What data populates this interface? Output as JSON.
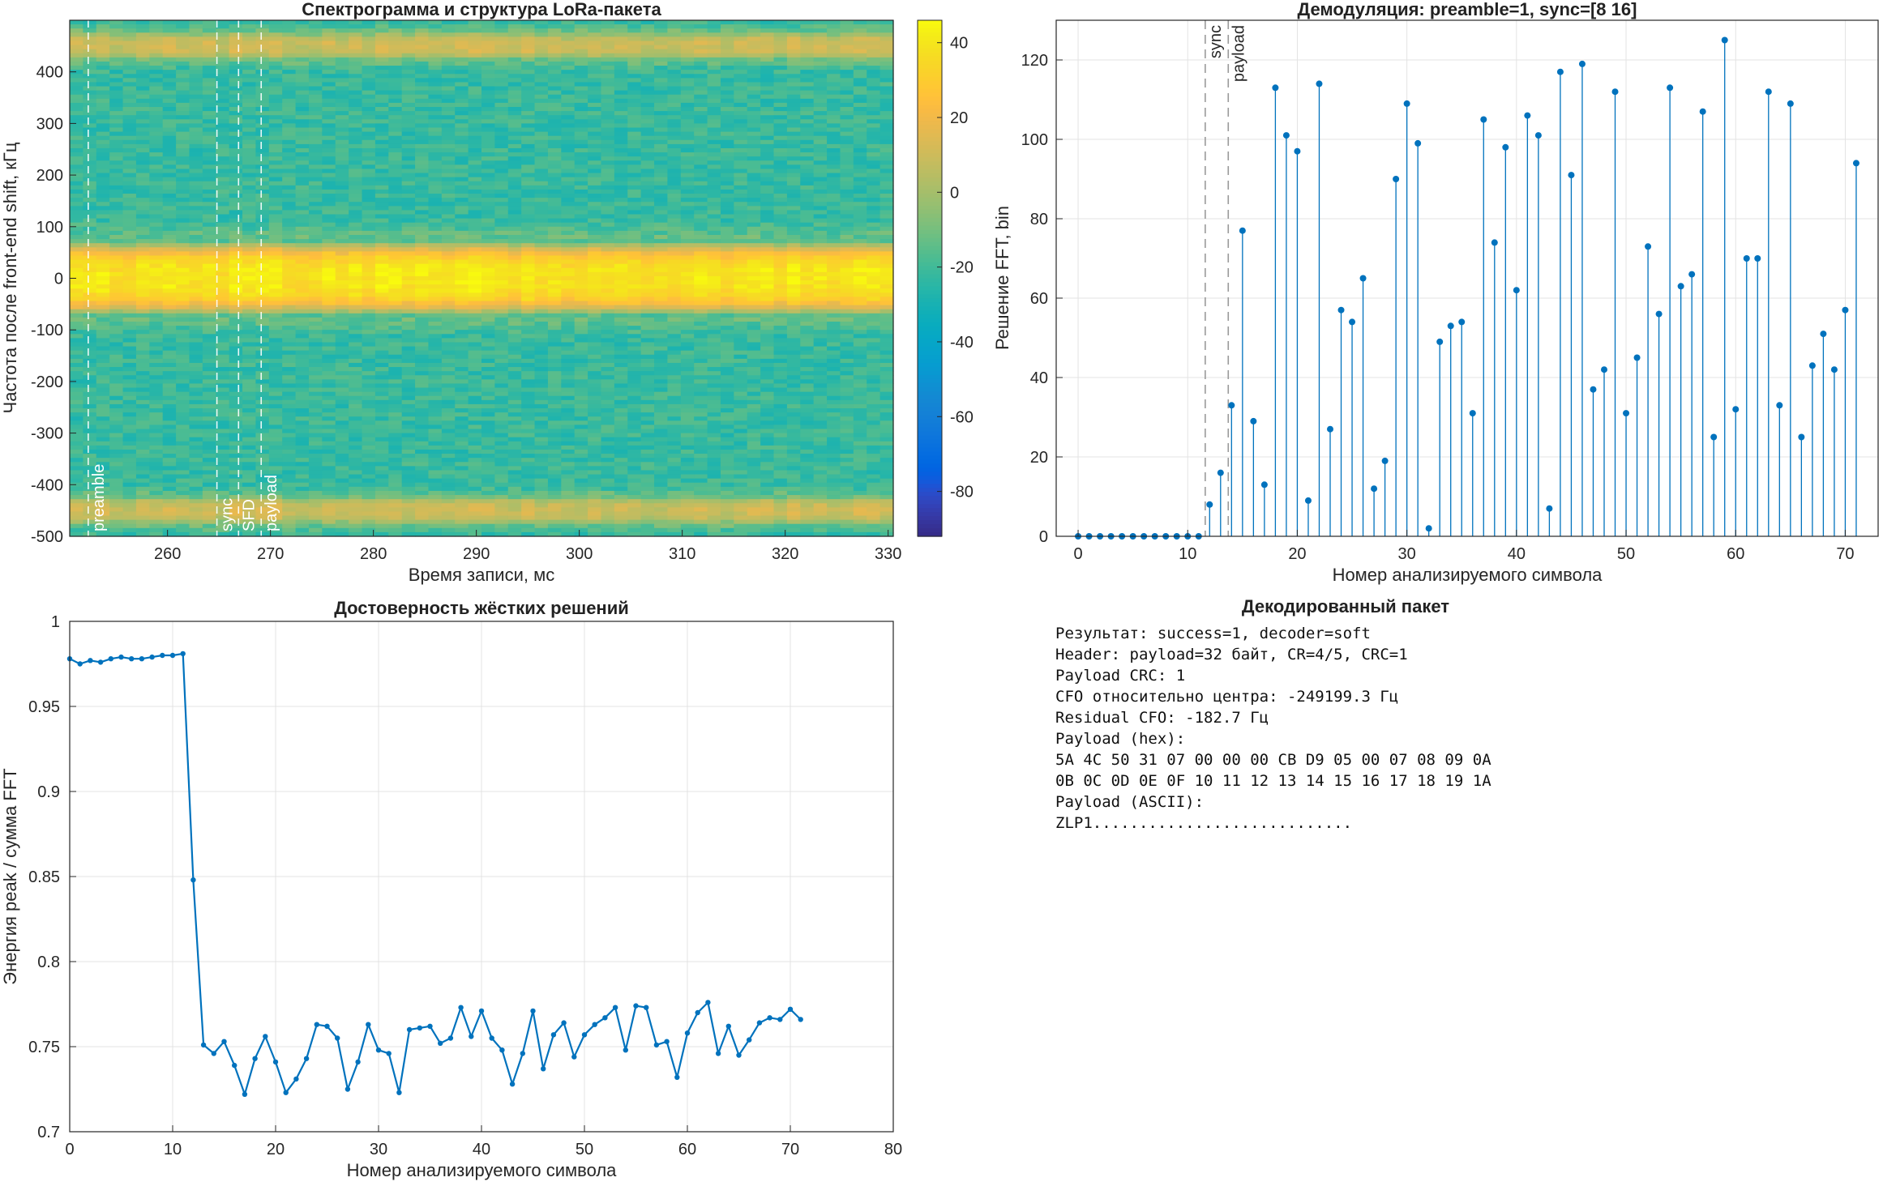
{
  "colors": {
    "accent": "#0072BD",
    "grid": "#e3e3e3",
    "axis": "#262626",
    "guide": "#9a9a9a"
  },
  "chart_data": [
    {
      "type": "heatmap",
      "title": "Спектрограмма и структура LoRa-пакета",
      "xlabel": "Время записи, мс",
      "ylabel": "Частота после front-end shift, кГц",
      "xlim": [
        250.5,
        330.5
      ],
      "ylim": [
        -500,
        500
      ],
      "xticks": [
        260,
        270,
        280,
        290,
        300,
        310,
        320,
        330
      ],
      "yticks": [
        -500,
        -400,
        -300,
        -200,
        -100,
        0,
        100,
        200,
        300,
        400
      ],
      "colorbar": {
        "clim": [
          -92,
          46
        ],
        "ticks": [
          40,
          20,
          0,
          -20,
          -40,
          -60,
          -80
        ],
        "colormap": "parula"
      },
      "bands": [
        {
          "center_khz": 0,
          "halfwidth_khz": 75,
          "level_db": 40
        },
        {
          "center_khz": 450,
          "halfwidth_khz": 30,
          "level_db": 10
        },
        {
          "center_khz": -450,
          "halfwidth_khz": 30,
          "level_db": 10
        }
      ],
      "background_level_db": -22,
      "markers": [
        {
          "label": "preamble",
          "x": 252.3
        },
        {
          "label": "sync",
          "x": 264.8
        },
        {
          "label": "SFD",
          "x": 266.9
        },
        {
          "label": "payload",
          "x": 269.1
        }
      ]
    },
    {
      "type": "stem",
      "title": "Демодуляция: preamble=1, sync=[8 16]",
      "xlabel": "Номер анализируемого символа",
      "ylabel": "Решение FFT, bin",
      "xlim": [
        -2,
        73
      ],
      "ylim": [
        0,
        130
      ],
      "xticks": [
        0,
        10,
        20,
        30,
        40,
        50,
        60,
        70
      ],
      "yticks": [
        0,
        20,
        40,
        60,
        80,
        100,
        120
      ],
      "markers": [
        {
          "label": "sync",
          "x": 11.6
        },
        {
          "label": "payload",
          "x": 13.7
        }
      ],
      "x": [
        0,
        1,
        2,
        3,
        4,
        5,
        6,
        7,
        8,
        9,
        10,
        11,
        12,
        13,
        14,
        15,
        16,
        17,
        18,
        19,
        20,
        21,
        22,
        23,
        24,
        25,
        26,
        27,
        28,
        29,
        30,
        31,
        32,
        33,
        34,
        35,
        36,
        37,
        38,
        39,
        40,
        41,
        42,
        43,
        44,
        45,
        46,
        47,
        48,
        49,
        50,
        51,
        52,
        53,
        54,
        55,
        56,
        57,
        58,
        59,
        60,
        61,
        62,
        63,
        64,
        65,
        66,
        67,
        68,
        69,
        70,
        71
      ],
      "values": [
        0,
        0,
        0,
        0,
        0,
        0,
        0,
        0,
        0,
        0,
        0,
        0,
        8,
        16,
        33,
        77,
        29,
        13,
        113,
        101,
        97,
        9,
        114,
        27,
        57,
        54,
        65,
        12,
        19,
        90,
        109,
        99,
        2,
        49,
        53,
        54,
        31,
        105,
        74,
        98,
        62,
        106,
        101,
        7,
        117,
        91,
        119,
        37,
        42,
        112,
        31,
        45,
        73,
        56,
        113,
        63,
        66,
        107,
        25,
        125,
        32,
        70,
        70,
        112,
        33,
        109,
        25,
        43,
        51,
        42,
        57,
        94
      ]
    },
    {
      "type": "line",
      "title": "Достоверность жёстких решений",
      "xlabel": "Номер анализируемого символа",
      "ylabel": "Энергия peak / сумма FFT",
      "xlim": [
        0,
        80
      ],
      "ylim": [
        0.7,
        1.0
      ],
      "xticks": [
        0,
        10,
        20,
        30,
        40,
        50,
        60,
        70,
        80
      ],
      "yticks": [
        0.7,
        0.75,
        0.8,
        0.85,
        0.9,
        0.95,
        1
      ],
      "x": [
        0,
        1,
        2,
        3,
        4,
        5,
        6,
        7,
        8,
        9,
        10,
        11,
        12,
        13,
        14,
        15,
        16,
        17,
        18,
        19,
        20,
        21,
        22,
        23,
        24,
        25,
        26,
        27,
        28,
        29,
        30,
        31,
        32,
        33,
        34,
        35,
        36,
        37,
        38,
        39,
        40,
        41,
        42,
        43,
        44,
        45,
        46,
        47,
        48,
        49,
        50,
        51,
        52,
        53,
        54,
        55,
        56,
        57,
        58,
        59,
        60,
        61,
        62,
        63,
        64,
        65,
        66,
        67,
        68,
        69,
        70,
        71
      ],
      "values": [
        0.978,
        0.975,
        0.977,
        0.976,
        0.978,
        0.979,
        0.978,
        0.978,
        0.979,
        0.98,
        0.98,
        0.981,
        0.848,
        0.751,
        0.746,
        0.753,
        0.739,
        0.722,
        0.743,
        0.756,
        0.741,
        0.723,
        0.731,
        0.743,
        0.763,
        0.762,
        0.755,
        0.725,
        0.741,
        0.763,
        0.748,
        0.746,
        0.723,
        0.76,
        0.761,
        0.762,
        0.752,
        0.755,
        0.773,
        0.756,
        0.771,
        0.755,
        0.748,
        0.728,
        0.746,
        0.771,
        0.737,
        0.757,
        0.764,
        0.744,
        0.757,
        0.763,
        0.767,
        0.773,
        0.748,
        0.774,
        0.773,
        0.751,
        0.753,
        0.732,
        0.758,
        0.77,
        0.776,
        0.746,
        0.762,
        0.745,
        0.754,
        0.764,
        0.767,
        0.766,
        0.772,
        0.766
      ]
    }
  ],
  "decoded": {
    "title": "Декодированный пакет",
    "lines": [
      "Результат: success=1, decoder=soft",
      "Header: payload=32 байт, CR=4/5, CRC=1",
      "Payload CRC: 1",
      "CFO относительно центра: -249199.3 Гц",
      "Residual CFO: -182.7 Гц",
      "Payload (hex):",
      "5A 4C 50 31 07 00 00 00 CB D9 05 00 07 08 09 0A",
      "0B 0C 0D 0E 0F 10 11 12 13 14 15 16 17 18 19 1A",
      "Payload (ASCII):",
      "ZLP1............................"
    ]
  }
}
